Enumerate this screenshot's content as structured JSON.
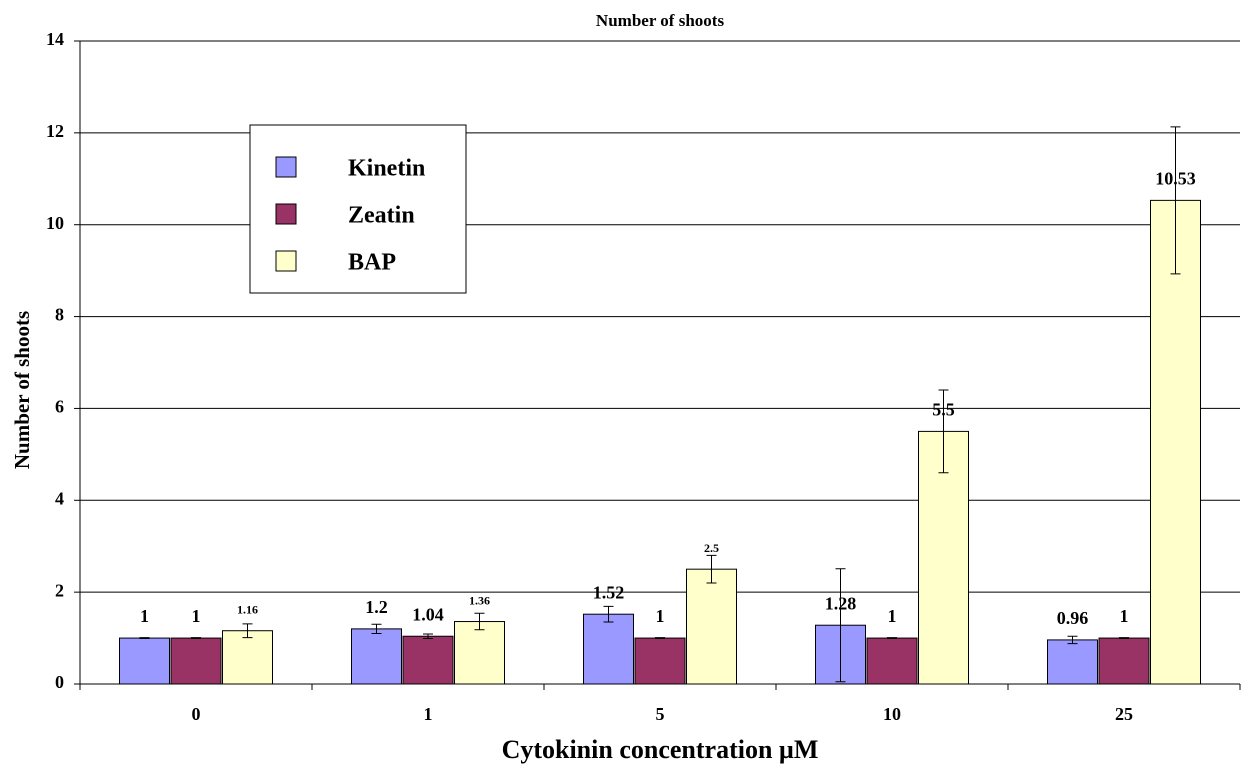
{
  "chart_data": {
    "type": "bar",
    "title": "Number of shoots",
    "x_label": "Cytokinin concentration µM",
    "y_label": "Number of shoots",
    "categories": [
      "0",
      "1",
      "5",
      "10",
      "25"
    ],
    "series": [
      {
        "name": "Kinetin",
        "color": "#9999ff",
        "values": [
          1,
          1.2,
          1.52,
          1.28,
          0.96
        ],
        "errors": [
          0.01,
          0.1,
          0.17,
          1.23,
          0.08
        ]
      },
      {
        "name": "Zeatin",
        "color": "#993366",
        "values": [
          1,
          1.04,
          1,
          1,
          1
        ],
        "errors": [
          0.01,
          0.05,
          0.01,
          0.01,
          0.01
        ]
      },
      {
        "name": "BAP",
        "color": "#ffffcc",
        "values": [
          1.16,
          1.36,
          2.5,
          5.5,
          10.53
        ],
        "errors": [
          0.15,
          0.18,
          0.3,
          0.9,
          1.6
        ]
      }
    ],
    "ylim": [
      0,
      14
    ],
    "yticks": [
      0,
      2,
      4,
      6,
      8,
      10,
      12,
      14
    ],
    "grid": true,
    "legend": "upper left"
  }
}
